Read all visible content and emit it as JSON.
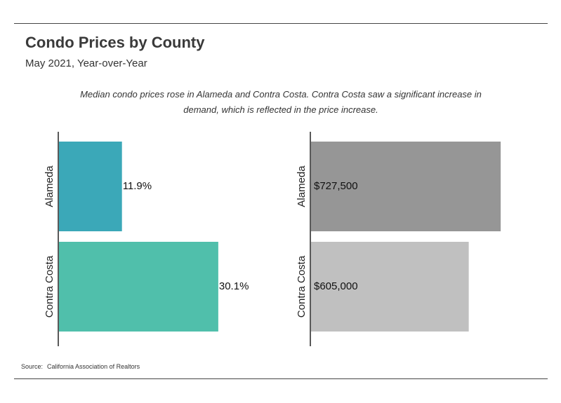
{
  "header": {
    "title": "Condo Prices by County",
    "subtitle": "May 2021, Year-over-Year",
    "note": "Median condo prices rose in Alameda and Contra Costa. Contra Costa saw a significant increase in demand, which is reflected in the price increase."
  },
  "footer": {
    "source_label": "Source:",
    "source_text": "California Association of Realtors"
  },
  "chart_data": [
    {
      "type": "bar",
      "orientation": "horizontal",
      "categories": [
        "Alameda",
        "Contra Costa"
      ],
      "values": [
        11.9,
        30.1
      ],
      "labels": [
        "11.9%",
        "30.1%"
      ],
      "colors": [
        "#3ba8b8",
        "#50bfab"
      ],
      "xlim": [
        0,
        40
      ],
      "title": "",
      "xlabel": "",
      "ylabel": ""
    },
    {
      "type": "bar",
      "orientation": "horizontal",
      "categories": [
        "Alameda",
        "Contra Costa"
      ],
      "values": [
        727500,
        605000
      ],
      "labels": [
        "$727,500",
        "$605,000"
      ],
      "colors": [
        "#969696",
        "#c0c0c0"
      ],
      "xlim": [
        0,
        800000
      ],
      "title": "",
      "xlabel": "",
      "ylabel": ""
    }
  ]
}
